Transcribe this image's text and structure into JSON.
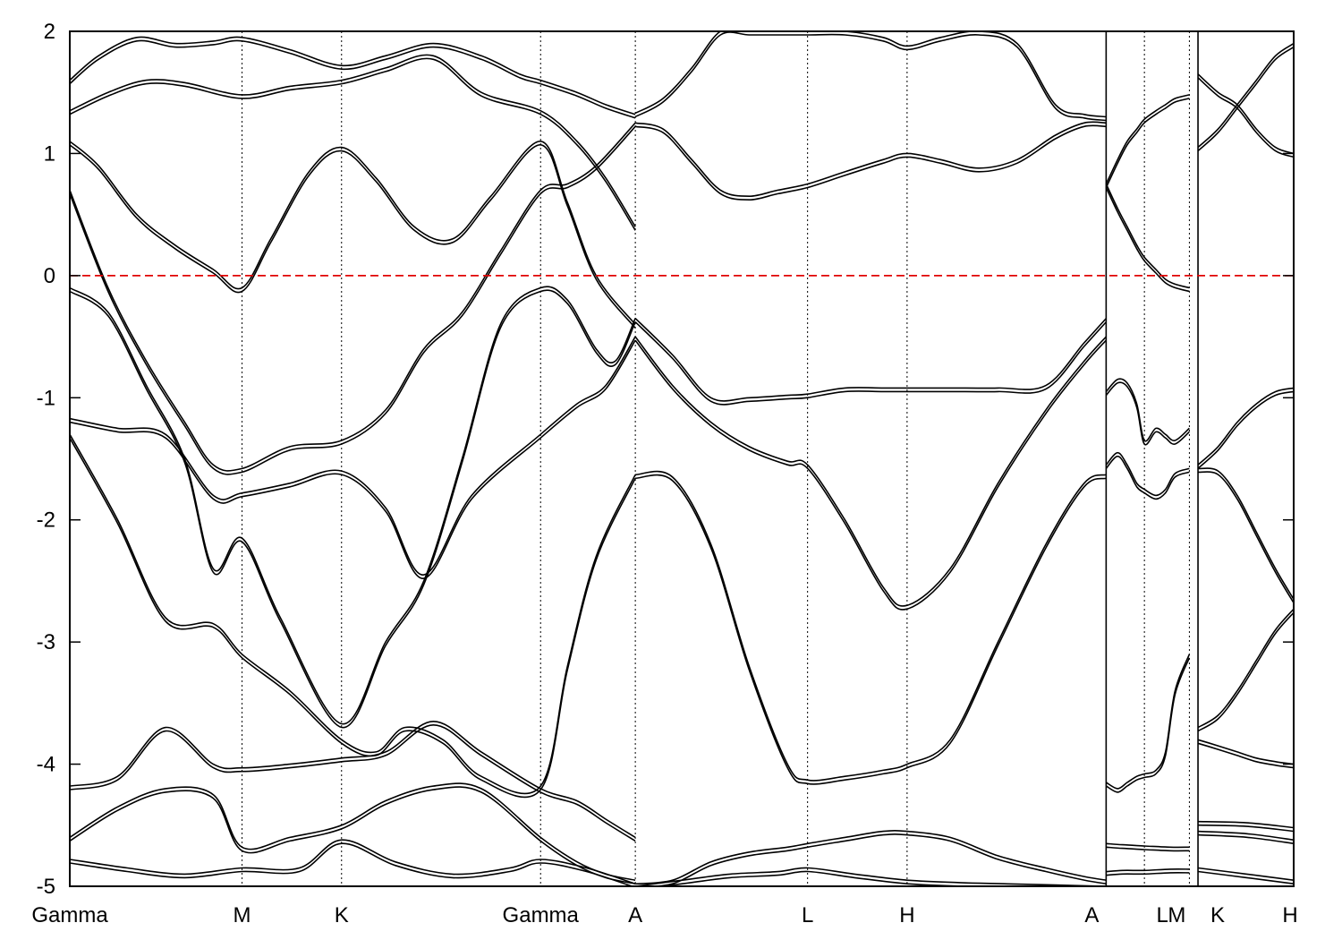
{
  "chart_data": {
    "type": "line",
    "title": "",
    "xlabel": "",
    "ylabel": "",
    "ylim": [
      -5,
      2
    ],
    "yticks": [
      -5,
      -4,
      -3,
      -2,
      -1,
      0,
      1,
      2
    ],
    "yticklabels": [
      "-5",
      "-4",
      "-3",
      "-2",
      "-1",
      "0",
      "1",
      "2"
    ],
    "xlim": [
      0,
      12.79
    ],
    "kpoints": [
      {
        "label": "Gamma",
        "x": 0.0
      },
      {
        "label": "M",
        "x": 1.8
      },
      {
        "label": "K",
        "x": 2.84
      },
      {
        "label": "Gamma",
        "x": 4.92
      },
      {
        "label": "A",
        "x": 5.91
      },
      {
        "label": "L",
        "x": 7.71
      },
      {
        "label": "H",
        "x": 8.75
      },
      {
        "label": "A",
        "x": 10.83
      },
      {
        "label": "L",
        "x": 11.23
      },
      {
        "label": "M",
        "x": 11.7
      },
      {
        "label": "K",
        "x": 11.79
      },
      {
        "label": "H",
        "x": 12.79
      }
    ],
    "segment_breaks": [
      10.83,
      11.79
    ],
    "fermi_level": 0,
    "colors": {
      "bands": "#000000",
      "fermi_line": "#e00000"
    },
    "grid": "vertical dotted at k-points",
    "series": [
      {
        "x": [
          0,
          0.5,
          1.0,
          1.5,
          1.8,
          2.3,
          2.84,
          3.2,
          3.5,
          3.9,
          4.3,
          4.92,
          5.2,
          5.5,
          5.91
        ],
        "y": [
          -1.3,
          -2.0,
          -2.8,
          -2.85,
          -3.1,
          -3.4,
          -3.8,
          -3.9,
          -3.7,
          -3.8,
          -4.1,
          -4.18,
          -3.2,
          -2.3,
          -1.63
        ]
      },
      {
        "x": [
          0,
          0.5,
          1.0,
          1.5,
          1.8,
          2.3,
          2.84,
          3.3,
          3.7,
          4.2,
          4.92,
          5.3,
          5.6,
          5.91
        ],
        "y": [
          -1.17,
          -1.25,
          -1.3,
          -1.8,
          -1.78,
          -1.7,
          -1.6,
          -1.9,
          -2.45,
          -1.8,
          -1.3,
          -1.05,
          -0.9,
          -0.5
        ]
      },
      {
        "x": [
          0,
          0.4,
          0.8,
          1.2,
          1.5,
          1.8,
          2.2,
          2.84,
          3.3,
          3.7,
          4.1,
          4.5,
          4.92,
          5.2,
          5.5,
          5.7,
          5.91
        ],
        "y": [
          -0.1,
          -0.3,
          -0.9,
          -1.5,
          -2.4,
          -2.15,
          -2.8,
          -3.67,
          -3.0,
          -2.5,
          -1.5,
          -0.4,
          -0.1,
          -0.2,
          -0.6,
          -0.7,
          -0.35
        ]
      },
      {
        "x": [
          0,
          0.4,
          0.8,
          1.2,
          1.5,
          1.8,
          2.3,
          2.84,
          3.3,
          3.7,
          4.1,
          4.5,
          4.92,
          5.2,
          5.5,
          5.91
        ],
        "y": [
          0.7,
          -0.1,
          -0.7,
          -1.2,
          -1.55,
          -1.58,
          -1.4,
          -1.35,
          -1.1,
          -0.6,
          -0.3,
          0.2,
          0.7,
          0.75,
          0.9,
          1.25
        ]
      },
      {
        "x": [
          0,
          0.3,
          0.7,
          1.1,
          1.5,
          1.8,
          2.1,
          2.5,
          2.84,
          3.2,
          3.6,
          4.0,
          4.4,
          4.92,
          5.2,
          5.5,
          5.91
        ],
        "y": [
          1.1,
          0.9,
          0.5,
          0.25,
          0.05,
          -0.1,
          0.3,
          0.85,
          1.05,
          0.8,
          0.4,
          0.3,
          0.65,
          1.1,
          0.6,
          0.0,
          -0.4
        ]
      },
      {
        "x": [
          0,
          0.4,
          0.8,
          1.2,
          1.8,
          2.3,
          2.84,
          3.3,
          3.8,
          4.3,
          4.92,
          5.3,
          5.6,
          5.91
        ],
        "y": [
          1.35,
          1.5,
          1.6,
          1.58,
          1.48,
          1.55,
          1.6,
          1.7,
          1.8,
          1.5,
          1.35,
          1.1,
          0.8,
          0.4
        ]
      },
      {
        "x": [
          0,
          0.3,
          0.7,
          1.1,
          1.5,
          1.8,
          2.3,
          2.84,
          3.3,
          3.8,
          4.3,
          4.7,
          4.92,
          5.3,
          5.6,
          5.91
        ],
        "y": [
          1.6,
          1.8,
          1.95,
          1.9,
          1.92,
          1.95,
          1.85,
          1.72,
          1.8,
          1.9,
          1.8,
          1.65,
          1.6,
          1.5,
          1.4,
          1.32
        ]
      },
      {
        "x": [
          0,
          0.5,
          1.0,
          1.5,
          1.8,
          2.3,
          2.84,
          3.3,
          3.8,
          4.3,
          4.92,
          5.3,
          5.6,
          5.91
        ],
        "y": [
          -4.18,
          -4.1,
          -3.7,
          -4.0,
          -4.03,
          -4.0,
          -3.95,
          -3.9,
          -3.65,
          -3.9,
          -4.2,
          -4.3,
          -4.45,
          -4.6
        ]
      },
      {
        "x": [
          0,
          0.5,
          1.0,
          1.5,
          1.8,
          2.3,
          2.84,
          3.3,
          3.8,
          4.3,
          4.92,
          5.3,
          5.6,
          5.91
        ],
        "y": [
          -4.6,
          -4.35,
          -4.2,
          -4.25,
          -4.68,
          -4.6,
          -4.5,
          -4.3,
          -4.18,
          -4.2,
          -4.6,
          -4.8,
          -4.9,
          -4.95
        ]
      },
      {
        "x": [
          0,
          0.6,
          1.2,
          1.8,
          2.4,
          2.84,
          3.4,
          4.0,
          4.6,
          4.92,
          5.4,
          5.91
        ],
        "y": [
          -4.78,
          -4.85,
          -4.9,
          -4.85,
          -4.85,
          -4.62,
          -4.8,
          -4.9,
          -4.85,
          -4.78,
          -4.85,
          -4.98
        ]
      },
      {
        "x": [
          5.91,
          6.3,
          6.7,
          7.1,
          7.5,
          7.71,
          8.1,
          8.5,
          8.75,
          9.2,
          9.7,
          10.2,
          10.6,
          10.83
        ],
        "y": [
          -1.63,
          -1.65,
          -2.2,
          -3.2,
          -4.0,
          -4.13,
          -4.1,
          -4.05,
          -4.0,
          -3.8,
          -3.0,
          -2.2,
          -1.7,
          -1.63
        ]
      },
      {
        "x": [
          5.91,
          6.3,
          6.7,
          7.1,
          7.5,
          7.71,
          8.1,
          8.5,
          8.75,
          9.2,
          9.7,
          10.2,
          10.6,
          10.83
        ],
        "y": [
          -0.5,
          -0.9,
          -1.2,
          -1.4,
          -1.52,
          -1.55,
          -2.0,
          -2.55,
          -2.7,
          -2.4,
          -1.7,
          -1.1,
          -0.7,
          -0.5
        ]
      },
      {
        "x": [
          5.91,
          6.3,
          6.7,
          7.1,
          7.5,
          7.71,
          8.1,
          8.5,
          8.75,
          9.2,
          9.7,
          10.2,
          10.6,
          10.83
        ],
        "y": [
          -0.35,
          -0.65,
          -1.0,
          -1.0,
          -0.98,
          -0.97,
          -0.92,
          -0.92,
          -0.92,
          -0.92,
          -0.92,
          -0.9,
          -0.55,
          -0.35
        ]
      },
      {
        "x": [
          5.91,
          6.2,
          6.5,
          6.8,
          7.1,
          7.4,
          7.71,
          8.1,
          8.5,
          8.75,
          9.1,
          9.5,
          9.9,
          10.3,
          10.6,
          10.83
        ],
        "y": [
          1.25,
          1.2,
          0.95,
          0.7,
          0.65,
          0.7,
          0.75,
          0.85,
          0.95,
          1.0,
          0.95,
          0.88,
          0.95,
          1.15,
          1.25,
          1.25
        ]
      },
      {
        "x": [
          5.91,
          6.2,
          6.5,
          6.8,
          7.1,
          7.4,
          7.71,
          8.1,
          8.5,
          8.75,
          9.1,
          9.5,
          9.9,
          10.3,
          10.6,
          10.83
        ],
        "y": [
          1.33,
          1.45,
          1.7,
          2.0,
          2.0,
          2.0,
          2.0,
          2.0,
          1.95,
          1.88,
          1.95,
          2.0,
          1.9,
          1.4,
          1.32,
          1.3
        ]
      },
      {
        "x": [
          5.91,
          6.3,
          6.7,
          7.1,
          7.5,
          7.71,
          8.1,
          8.5,
          8.75,
          9.2,
          9.7,
          10.2,
          10.6,
          10.83
        ],
        "y": [
          -4.98,
          -4.95,
          -4.8,
          -4.72,
          -4.68,
          -4.65,
          -4.6,
          -4.55,
          -4.55,
          -4.6,
          -4.75,
          -4.85,
          -4.92,
          -4.95
        ]
      },
      {
        "x": [
          5.91,
          6.4,
          6.9,
          7.4,
          7.71,
          8.2,
          8.75,
          9.3,
          9.8,
          10.3,
          10.83
        ],
        "y": [
          -5.0,
          -4.95,
          -4.9,
          -4.88,
          -4.85,
          -4.9,
          -4.95,
          -4.97,
          -4.98,
          -4.99,
          -5.0
        ]
      },
      {
        "x": [
          10.83,
          10.95,
          11.05,
          11.15,
          11.23,
          11.35,
          11.45,
          11.55,
          11.7
        ],
        "y": [
          0.75,
          0.95,
          1.1,
          1.2,
          1.28,
          1.35,
          1.4,
          1.45,
          1.48
        ]
      },
      {
        "x": [
          10.83,
          10.95,
          11.05,
          11.15,
          11.23,
          11.35,
          11.45,
          11.55,
          11.7
        ],
        "y": [
          0.75,
          0.55,
          0.4,
          0.25,
          0.15,
          0.05,
          -0.03,
          -0.07,
          -0.1
        ]
      },
      {
        "x": [
          10.83,
          10.95,
          11.05,
          11.15,
          11.23,
          11.35,
          11.45,
          11.55,
          11.7
        ],
        "y": [
          -0.95,
          -0.85,
          -0.88,
          -1.05,
          -1.35,
          -1.25,
          -1.3,
          -1.35,
          -1.25
        ]
      },
      {
        "x": [
          10.83,
          10.95,
          11.05,
          11.15,
          11.23,
          11.35,
          11.45,
          11.55,
          11.7
        ],
        "y": [
          -1.55,
          -1.45,
          -1.55,
          -1.7,
          -1.75,
          -1.8,
          -1.75,
          -1.62,
          -1.58
        ]
      },
      {
        "x": [
          10.83,
          10.95,
          11.05,
          11.15,
          11.23,
          11.35,
          11.45,
          11.55,
          11.7
        ],
        "y": [
          -4.15,
          -4.2,
          -4.15,
          -4.1,
          -4.08,
          -4.05,
          -3.9,
          -3.4,
          -3.1
        ]
      },
      {
        "x": [
          10.83,
          11.0,
          11.23,
          11.5,
          11.7
        ],
        "y": [
          -4.65,
          -4.66,
          -4.67,
          -4.68,
          -4.68
        ]
      },
      {
        "x": [
          10.83,
          11.0,
          11.23,
          11.5,
          11.7
        ],
        "y": [
          -4.88,
          -4.87,
          -4.87,
          -4.86,
          -4.86
        ]
      },
      {
        "x": [
          11.79,
          12.0,
          12.2,
          12.4,
          12.6,
          12.79
        ],
        "y": [
          1.05,
          1.2,
          1.4,
          1.6,
          1.8,
          1.9
        ]
      },
      {
        "x": [
          11.79,
          12.0,
          12.2,
          12.4,
          12.6,
          12.79
        ],
        "y": [
          1.65,
          1.5,
          1.4,
          1.2,
          1.05,
          1.0
        ]
      },
      {
        "x": [
          11.79,
          12.0,
          12.2,
          12.4,
          12.6,
          12.79
        ],
        "y": [
          -1.55,
          -1.4,
          -1.2,
          -1.05,
          -0.95,
          -0.92
        ]
      },
      {
        "x": [
          11.79,
          12.0,
          12.2,
          12.4,
          12.6,
          12.79
        ],
        "y": [
          -1.58,
          -1.6,
          -1.8,
          -2.1,
          -2.4,
          -2.65
        ]
      },
      {
        "x": [
          11.79,
          12.0,
          12.2,
          12.4,
          12.6,
          12.79
        ],
        "y": [
          -3.7,
          -3.6,
          -3.4,
          -3.15,
          -2.9,
          -2.73
        ]
      },
      {
        "x": [
          11.79,
          12.0,
          12.2,
          12.4,
          12.6,
          12.79
        ],
        "y": [
          -3.8,
          -3.85,
          -3.9,
          -3.95,
          -3.98,
          -4.0
        ]
      },
      {
        "x": [
          11.79,
          12.3,
          12.79
        ],
        "y": [
          -4.47,
          -4.48,
          -4.52
        ]
      },
      {
        "x": [
          11.79,
          12.3,
          12.79
        ],
        "y": [
          -4.55,
          -4.57,
          -4.62
        ]
      },
      {
        "x": [
          11.79,
          12.3,
          12.79
        ],
        "y": [
          -4.85,
          -4.9,
          -4.95
        ]
      }
    ]
  }
}
